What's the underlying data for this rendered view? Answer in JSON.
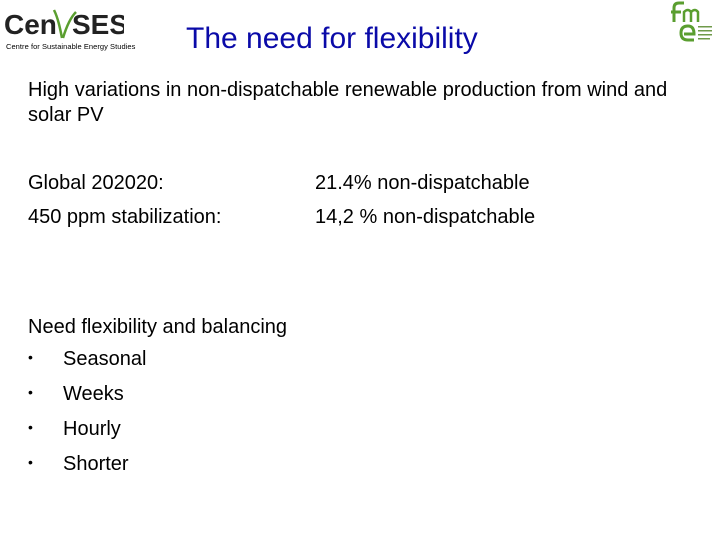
{
  "logos": {
    "censes": {
      "wordmark_left": "Cen",
      "wordmark_right": "SES",
      "tagline": "Centre for Sustainable Energy Studies",
      "colors": {
        "text": "#222222",
        "accent": "#5a9e2f"
      }
    },
    "fme": {
      "icon": "fme-logo-icon",
      "colors": {
        "primary": "#5a9e2f"
      }
    }
  },
  "slide": {
    "title": "The need for flexibility",
    "title_color": "#0a0aa8",
    "intro": "High variations in  non-dispatchable renewable production from wind and solar PV",
    "scenarios": [
      {
        "label": "Global 202020:",
        "value": "21.4%  non-dispatchable"
      },
      {
        "label": "450 ppm stabilization:",
        "value": "14,2 % non-dispatchable"
      }
    ],
    "need_heading": "Need flexibility and balancing",
    "bullets": [
      "Seasonal",
      "Weeks",
      "Hourly",
      "Shorter"
    ],
    "bullet_glyph": "•"
  }
}
